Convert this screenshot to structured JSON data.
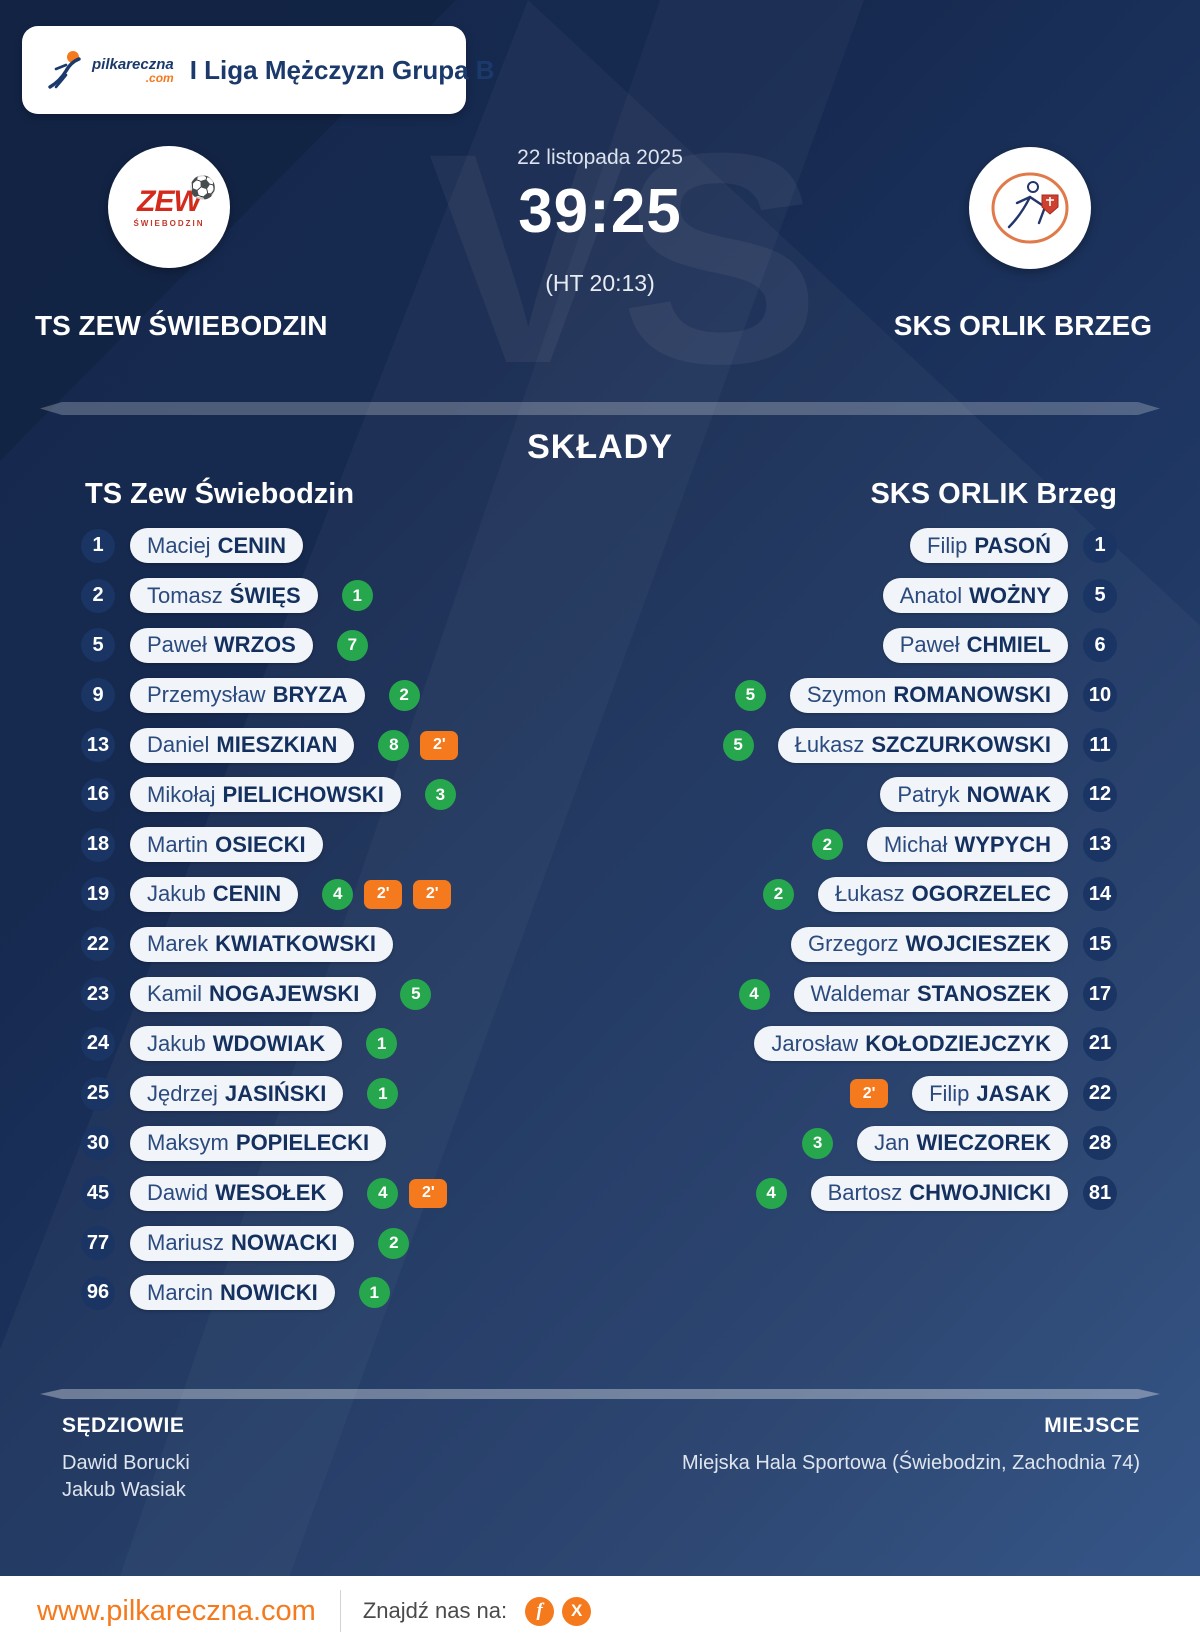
{
  "header": {
    "league": "I Liga Mężczyzn Grupa B",
    "brand_name": "pilkareczna",
    "brand_tld": ".com"
  },
  "match": {
    "date": "22 listopada 2025",
    "score": "39:25",
    "halftime": "(HT 20:13)",
    "vs_watermark": "VS",
    "home_team": "TS ZEW ŚWIEBODZIN",
    "away_team": "SKS ORLIK BRZEG",
    "home_logo": {
      "main": "ZEW",
      "ball": "⚽",
      "sub": "ŚWIEBODZIN"
    }
  },
  "lineups": {
    "title": "SKŁADY",
    "home": {
      "title": "TS Zew Świebodzin",
      "players": [
        {
          "num": "1",
          "first": "Maciej",
          "last": "CENIN",
          "goals": null,
          "pens": []
        },
        {
          "num": "2",
          "first": "Tomasz",
          "last": "ŚWIĘS",
          "goals": "1",
          "pens": []
        },
        {
          "num": "5",
          "first": "Paweł",
          "last": "WRZOS",
          "goals": "7",
          "pens": []
        },
        {
          "num": "9",
          "first": "Przemysław",
          "last": "BRYZA",
          "goals": "2",
          "pens": []
        },
        {
          "num": "13",
          "first": "Daniel",
          "last": "MIESZKIAN",
          "goals": "8",
          "pens": [
            "2'"
          ]
        },
        {
          "num": "16",
          "first": "Mikołaj",
          "last": "PIELICHOWSKI",
          "goals": "3",
          "pens": []
        },
        {
          "num": "18",
          "first": "Martin",
          "last": "OSIECKI",
          "goals": null,
          "pens": []
        },
        {
          "num": "19",
          "first": "Jakub",
          "last": "CENIN",
          "goals": "4",
          "pens": [
            "2'",
            "2'"
          ]
        },
        {
          "num": "22",
          "first": "Marek",
          "last": "KWIATKOWSKI",
          "goals": null,
          "pens": []
        },
        {
          "num": "23",
          "first": "Kamil",
          "last": "NOGAJEWSKI",
          "goals": "5",
          "pens": []
        },
        {
          "num": "24",
          "first": "Jakub",
          "last": "WDOWIAK",
          "goals": "1",
          "pens": []
        },
        {
          "num": "25",
          "first": "Jędrzej",
          "last": "JASIŃSKI",
          "goals": "1",
          "pens": []
        },
        {
          "num": "30",
          "first": "Maksym",
          "last": "POPIELECKI",
          "goals": null,
          "pens": []
        },
        {
          "num": "45",
          "first": "Dawid",
          "last": "WESOŁEK",
          "goals": "4",
          "pens": [
            "2'"
          ]
        },
        {
          "num": "77",
          "first": "Mariusz",
          "last": "NOWACKI",
          "goals": "2",
          "pens": []
        },
        {
          "num": "96",
          "first": "Marcin",
          "last": "NOWICKI",
          "goals": "1",
          "pens": []
        }
      ]
    },
    "away": {
      "title": "SKS ORLIK Brzeg",
      "players": [
        {
          "num": "1",
          "first": "Filip",
          "last": "PASOŃ",
          "goals": null,
          "pens": []
        },
        {
          "num": "5",
          "first": "Anatol",
          "last": "WOŻNY",
          "goals": null,
          "pens": []
        },
        {
          "num": "6",
          "first": "Paweł",
          "last": "CHMIEL",
          "goals": null,
          "pens": []
        },
        {
          "num": "10",
          "first": "Szymon",
          "last": "ROMANOWSKI",
          "goals": "5",
          "pens": []
        },
        {
          "num": "11",
          "first": "Łukasz",
          "last": "SZCZURKOWSKI",
          "goals": "5",
          "pens": []
        },
        {
          "num": "12",
          "first": "Patryk",
          "last": "NOWAK",
          "goals": null,
          "pens": []
        },
        {
          "num": "13",
          "first": "Michał",
          "last": "WYPYCH",
          "goals": "2",
          "pens": []
        },
        {
          "num": "14",
          "first": "Łukasz",
          "last": "OGORZELEC",
          "goals": "2",
          "pens": []
        },
        {
          "num": "15",
          "first": "Grzegorz",
          "last": "WOJCIESZEK",
          "goals": null,
          "pens": []
        },
        {
          "num": "17",
          "first": "Waldemar",
          "last": "STANOSZEK",
          "goals": "4",
          "pens": []
        },
        {
          "num": "21",
          "first": "Jarosław",
          "last": "KOŁODZIEJCZYK",
          "goals": null,
          "pens": []
        },
        {
          "num": "22",
          "first": "Filip",
          "last": "JASAK",
          "goals": null,
          "pens": [
            "2'"
          ]
        },
        {
          "num": "28",
          "first": "Jan",
          "last": "WIECZOREK",
          "goals": "3",
          "pens": []
        },
        {
          "num": "81",
          "first": "Bartosz",
          "last": "CHWOJNICKI",
          "goals": "4",
          "pens": []
        }
      ]
    }
  },
  "officials": {
    "referees_label": "SĘDZIOWIE",
    "referees": [
      "Dawid Borucki",
      "Jakub Wasiak"
    ],
    "venue_label": "MIEJSCE",
    "venue": "Miejska Hala Sportowa (Świebodzin, Zachodnia 74)"
  },
  "footer": {
    "url": "www.pilkareczna.com",
    "find_us": "Znajdź nas na:",
    "facebook_glyph": "f",
    "x_glyph": "X"
  },
  "colors": {
    "accent_orange": "#f5791d",
    "goal_green": "#27a74d",
    "navy_text": "#1b3a6b",
    "pill_bg": "#f1f4f9",
    "bg_top": "#15284e",
    "bg_bottom": "#2f5187"
  }
}
